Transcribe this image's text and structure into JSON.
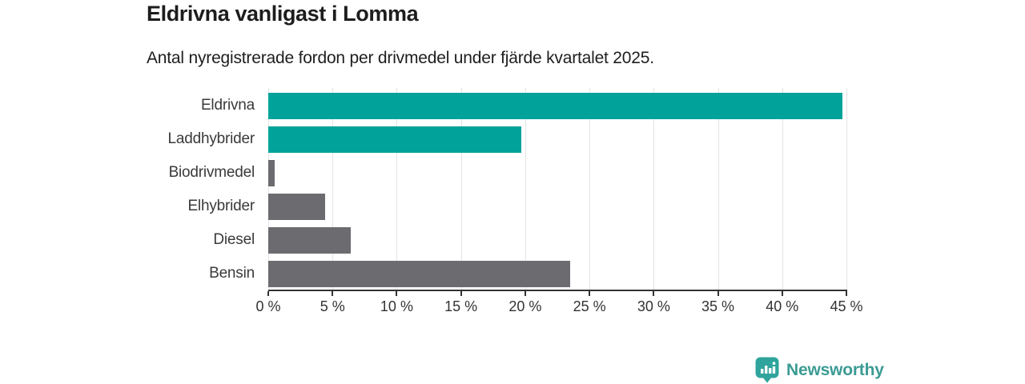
{
  "header": {
    "title": "Eldrivna vanligast i Lomma",
    "subtitle": "Antal nyregistrerade fordon per drivmedel under fjärde kvartalet 2025."
  },
  "chart_data": {
    "type": "bar",
    "orientation": "horizontal",
    "title": "Eldrivna vanligast i Lomma",
    "subtitle": "Antal nyregistrerade fordon per drivmedel under fjärde kvartalet 2025.",
    "categories": [
      "Eldrivna",
      "Laddhybrider",
      "Biodrivmedel",
      "Elhybrider",
      "Diesel",
      "Bensin"
    ],
    "values": [
      44.7,
      19.7,
      0.5,
      4.4,
      6.4,
      23.5
    ],
    "unit": "%",
    "bar_colors": [
      "#00a29a",
      "#00a29a",
      "#6b6b70",
      "#6b6b70",
      "#6b6b70",
      "#6b6b70"
    ],
    "highlight_color": "#00a29a",
    "default_color": "#6b6b70",
    "xlabel": "",
    "ylabel": "",
    "xlim": [
      0,
      45
    ],
    "x_ticks": [
      0,
      5,
      10,
      15,
      20,
      25,
      30,
      35,
      40,
      45
    ],
    "x_tick_labels": [
      "0 %",
      "5 %",
      "10 %",
      "15 %",
      "20 %",
      "25 %",
      "30 %",
      "35 %",
      "40 %",
      "45 %"
    ],
    "grid": "vertical-on",
    "legend": "none"
  },
  "footer": {
    "brand": "Newsworthy",
    "brand_color": "#3b9b94",
    "logo_icon": "newsworthy-pin-bar-chart-icon",
    "logo_color": "#2fa49c"
  }
}
